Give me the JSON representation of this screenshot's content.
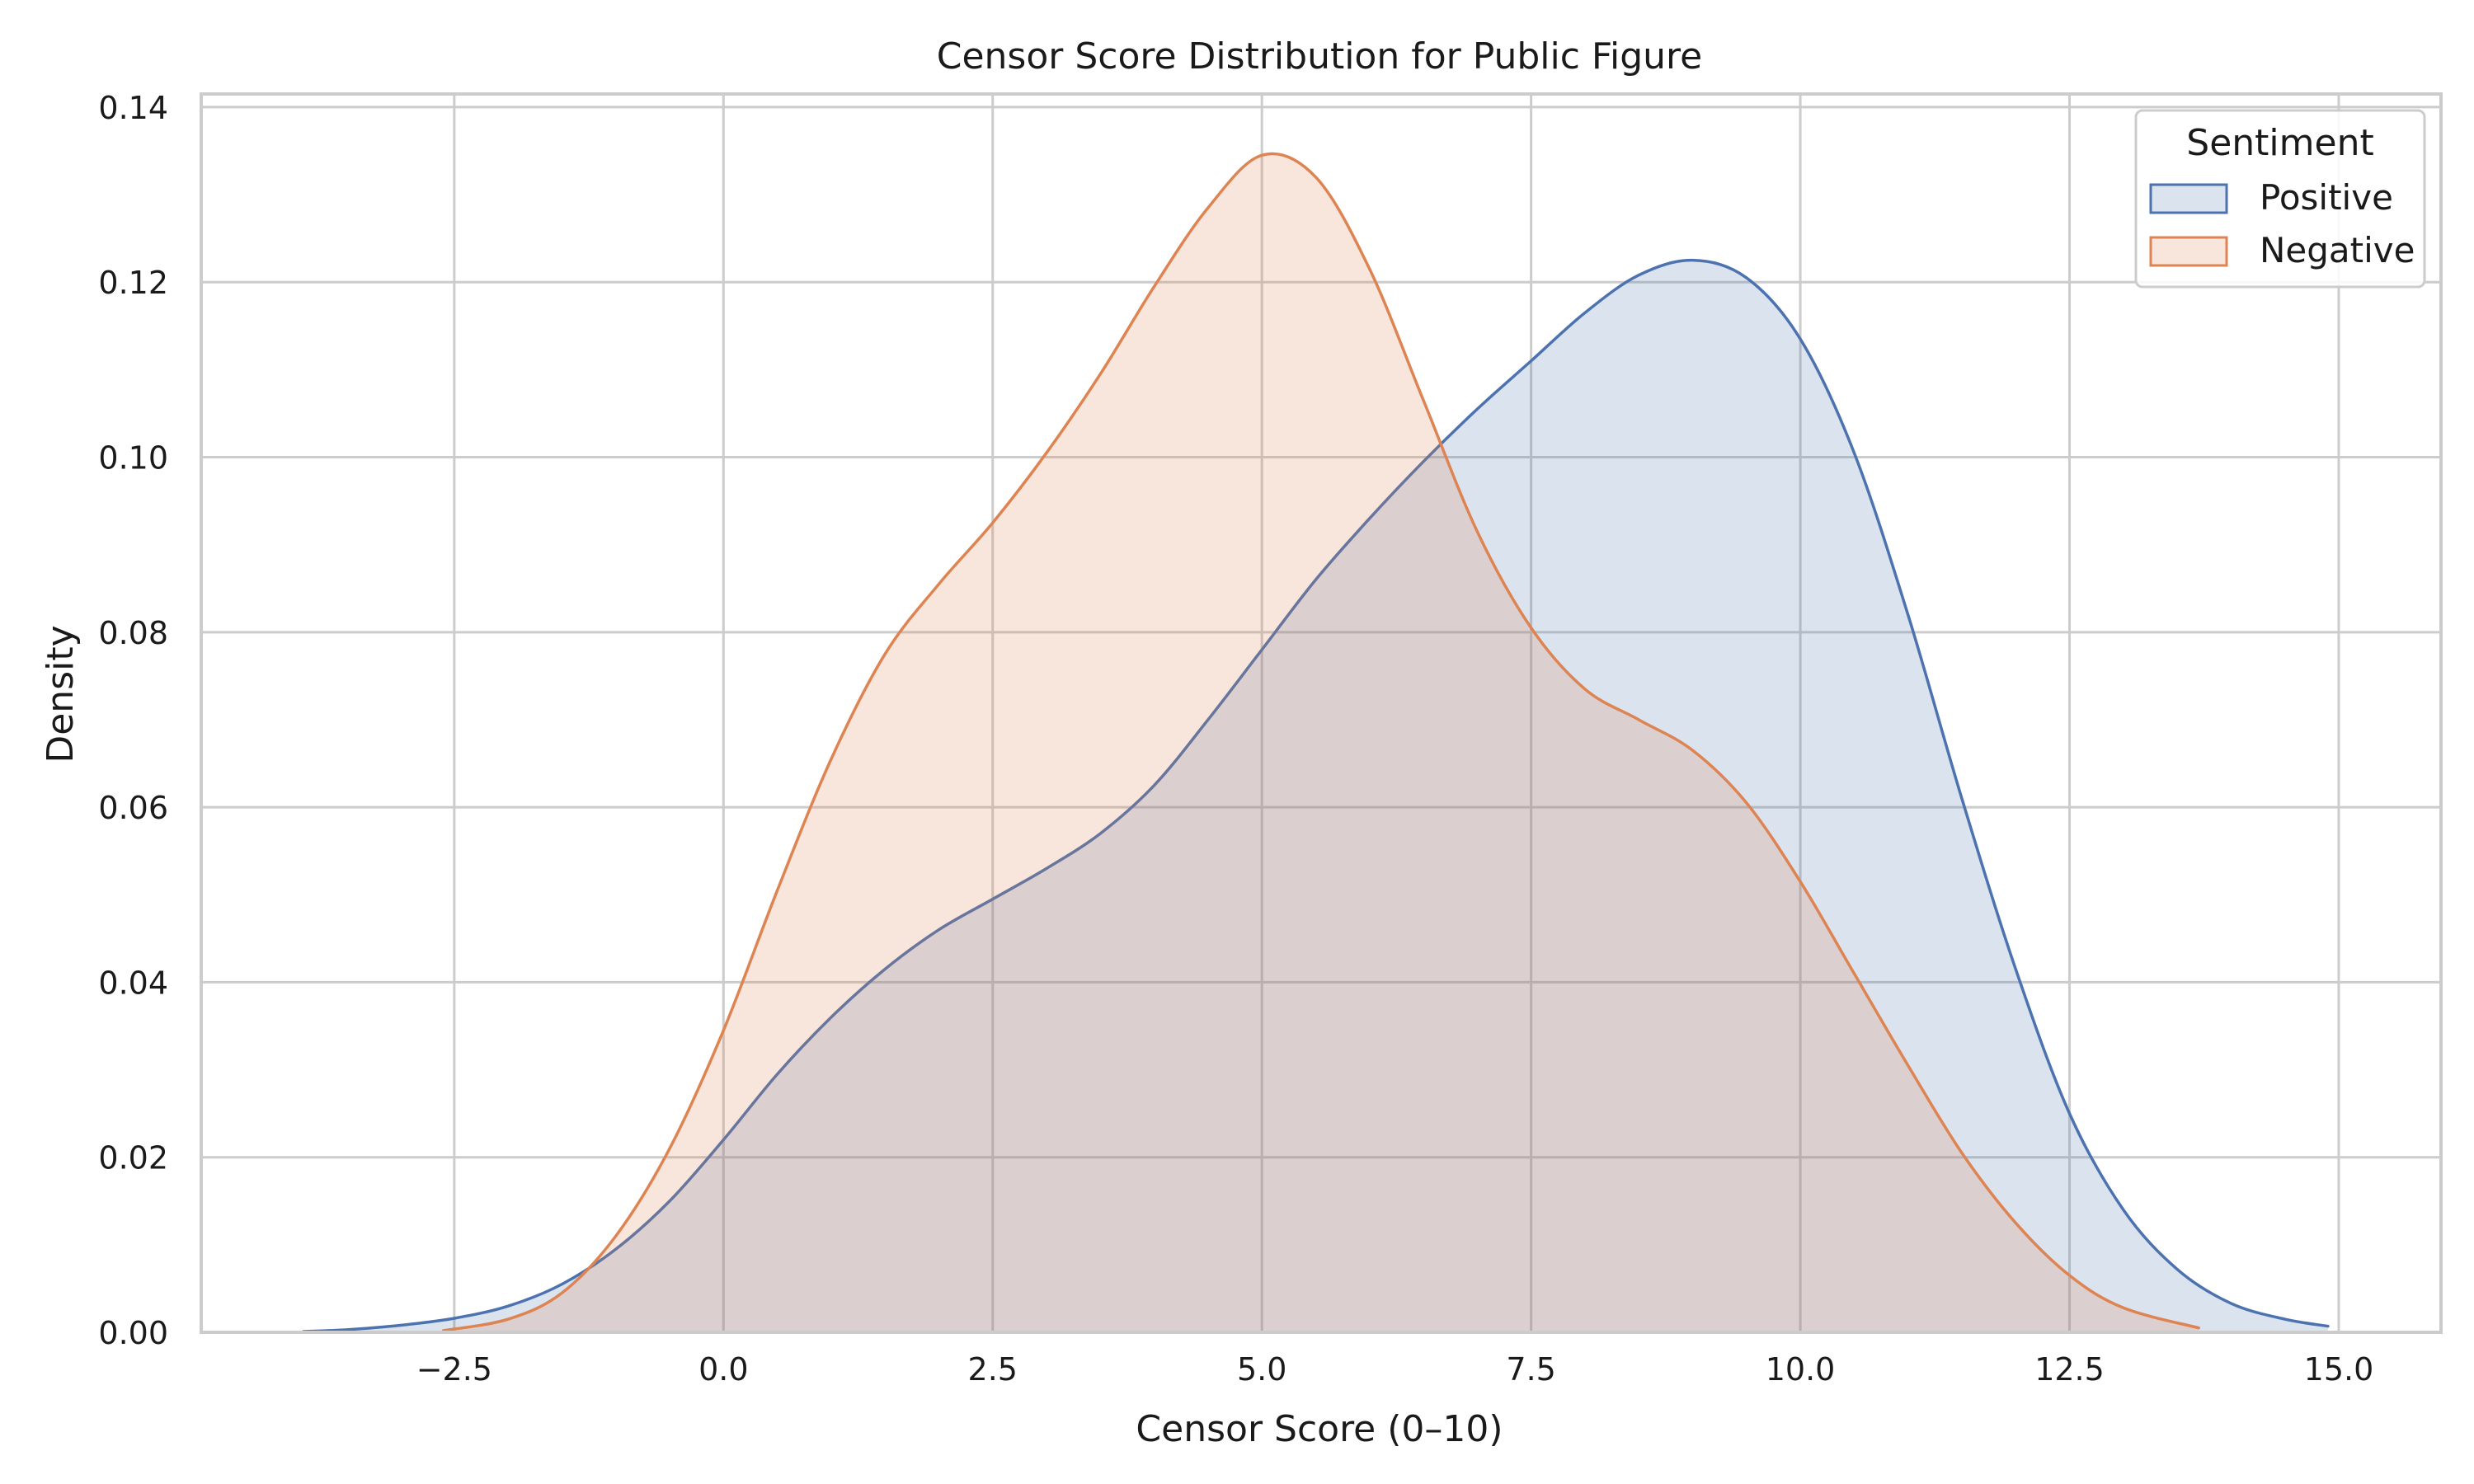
{
  "chart_data": {
    "type": "area",
    "title": "Censor Score Distribution for Public Figure",
    "xlabel": "Censor Score (0–10)",
    "ylabel": "Density",
    "xlim": [
      -4.85,
      15.95
    ],
    "ylim": [
      0,
      0.1415
    ],
    "x_ticks": [
      -2.5,
      0.0,
      2.5,
      5.0,
      7.5,
      10.0,
      12.5,
      15.0
    ],
    "x_tick_labels": [
      "−2.5",
      "0.0",
      "2.5",
      "5.0",
      "7.5",
      "10.0",
      "12.5",
      "15.0"
    ],
    "y_ticks": [
      0.0,
      0.02,
      0.04,
      0.06,
      0.08,
      0.1,
      0.12,
      0.14
    ],
    "y_tick_labels": [
      "0.00",
      "0.02",
      "0.04",
      "0.06",
      "0.08",
      "0.10",
      "0.12",
      "0.14"
    ],
    "grid": true,
    "legend": {
      "title": "Sentiment",
      "position": "top-right",
      "entries": [
        "Positive",
        "Negative"
      ]
    },
    "series": [
      {
        "name": "Positive",
        "color": "#4c72b0",
        "fill": "#4c72b0",
        "fill_opacity": 0.2,
        "points": [
          [
            -3.9,
            0.0001
          ],
          [
            -3.5,
            0.0003
          ],
          [
            -3.0,
            0.0008
          ],
          [
            -2.5,
            0.0016
          ],
          [
            -2.0,
            0.003
          ],
          [
            -1.5,
            0.0055
          ],
          [
            -1.0,
            0.0095
          ],
          [
            -0.5,
            0.015
          ],
          [
            0.0,
            0.022
          ],
          [
            0.5,
            0.0295
          ],
          [
            1.0,
            0.036
          ],
          [
            1.5,
            0.0415
          ],
          [
            2.0,
            0.046
          ],
          [
            2.5,
            0.0495
          ],
          [
            3.0,
            0.053
          ],
          [
            3.5,
            0.057
          ],
          [
            4.0,
            0.0625
          ],
          [
            4.5,
            0.07
          ],
          [
            5.0,
            0.078
          ],
          [
            5.5,
            0.086
          ],
          [
            6.0,
            0.093
          ],
          [
            6.5,
            0.0995
          ],
          [
            7.0,
            0.1055
          ],
          [
            7.5,
            0.111
          ],
          [
            8.0,
            0.1165
          ],
          [
            8.5,
            0.1208
          ],
          [
            9.0,
            0.1225
          ],
          [
            9.5,
            0.1205
          ],
          [
            10.0,
            0.1135
          ],
          [
            10.5,
            0.1005
          ],
          [
            11.0,
            0.082
          ],
          [
            11.5,
            0.061
          ],
          [
            12.0,
            0.0415
          ],
          [
            12.5,
            0.025
          ],
          [
            13.0,
            0.014
          ],
          [
            13.5,
            0.0072
          ],
          [
            14.0,
            0.0033
          ],
          [
            14.5,
            0.0015
          ],
          [
            14.9,
            0.0007
          ]
        ]
      },
      {
        "name": "Negative",
        "color": "#dd8452",
        "fill": "#dd8452",
        "fill_opacity": 0.2,
        "points": [
          [
            -2.6,
            0.0002
          ],
          [
            -2.0,
            0.0015
          ],
          [
            -1.5,
            0.0045
          ],
          [
            -1.0,
            0.011
          ],
          [
            -0.5,
            0.021
          ],
          [
            0.0,
            0.0345
          ],
          [
            0.5,
            0.0505
          ],
          [
            1.0,
            0.0655
          ],
          [
            1.5,
            0.0775
          ],
          [
            2.0,
            0.0855
          ],
          [
            2.5,
            0.0925
          ],
          [
            3.0,
            0.1005
          ],
          [
            3.5,
            0.1095
          ],
          [
            4.0,
            0.1195
          ],
          [
            4.5,
            0.1285
          ],
          [
            5.0,
            0.1345
          ],
          [
            5.5,
            0.132
          ],
          [
            6.0,
            0.1215
          ],
          [
            6.5,
            0.1065
          ],
          [
            7.0,
            0.0915
          ],
          [
            7.5,
            0.0805
          ],
          [
            8.0,
            0.0735
          ],
          [
            8.5,
            0.07
          ],
          [
            9.0,
            0.0665
          ],
          [
            9.5,
            0.0605
          ],
          [
            10.0,
            0.0515
          ],
          [
            10.5,
            0.041
          ],
          [
            11.0,
            0.0305
          ],
          [
            11.5,
            0.0205
          ],
          [
            12.0,
            0.0125
          ],
          [
            12.5,
            0.0065
          ],
          [
            13.0,
            0.0028
          ],
          [
            13.7,
            0.0005
          ]
        ]
      }
    ]
  }
}
